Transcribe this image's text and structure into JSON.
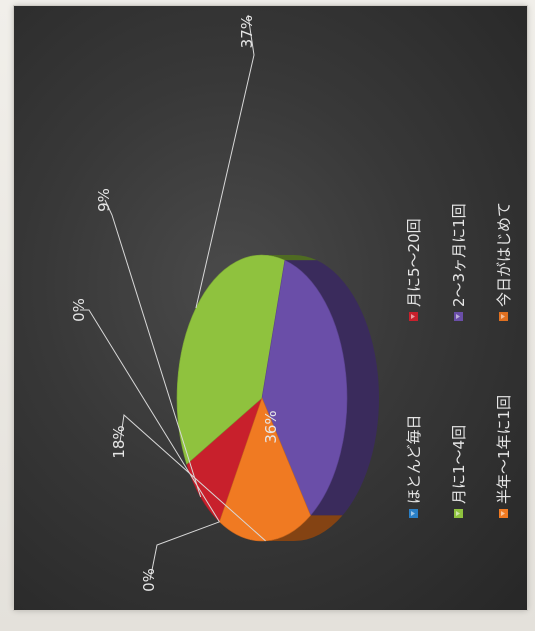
{
  "chart_data": {
    "type": "pie",
    "title": "",
    "categories": [
      "ほとんど毎日",
      "月に5〜20回",
      "月に1〜4回",
      "2〜3ヶ月に1回",
      "半年〜1年に1回",
      "今日がはじめて"
    ],
    "values": [
      0,
      9,
      37,
      36,
      18,
      0
    ],
    "value_labels": [
      "0%",
      "9%",
      "37%",
      "36%",
      "18%",
      "0%"
    ],
    "colors": [
      "#2a7fc6",
      "#c8202c",
      "#8fc23e",
      "#6a4ea8",
      "#f07a22",
      "#e07020"
    ],
    "legend": {
      "placement": "right"
    },
    "style": "3d"
  }
}
